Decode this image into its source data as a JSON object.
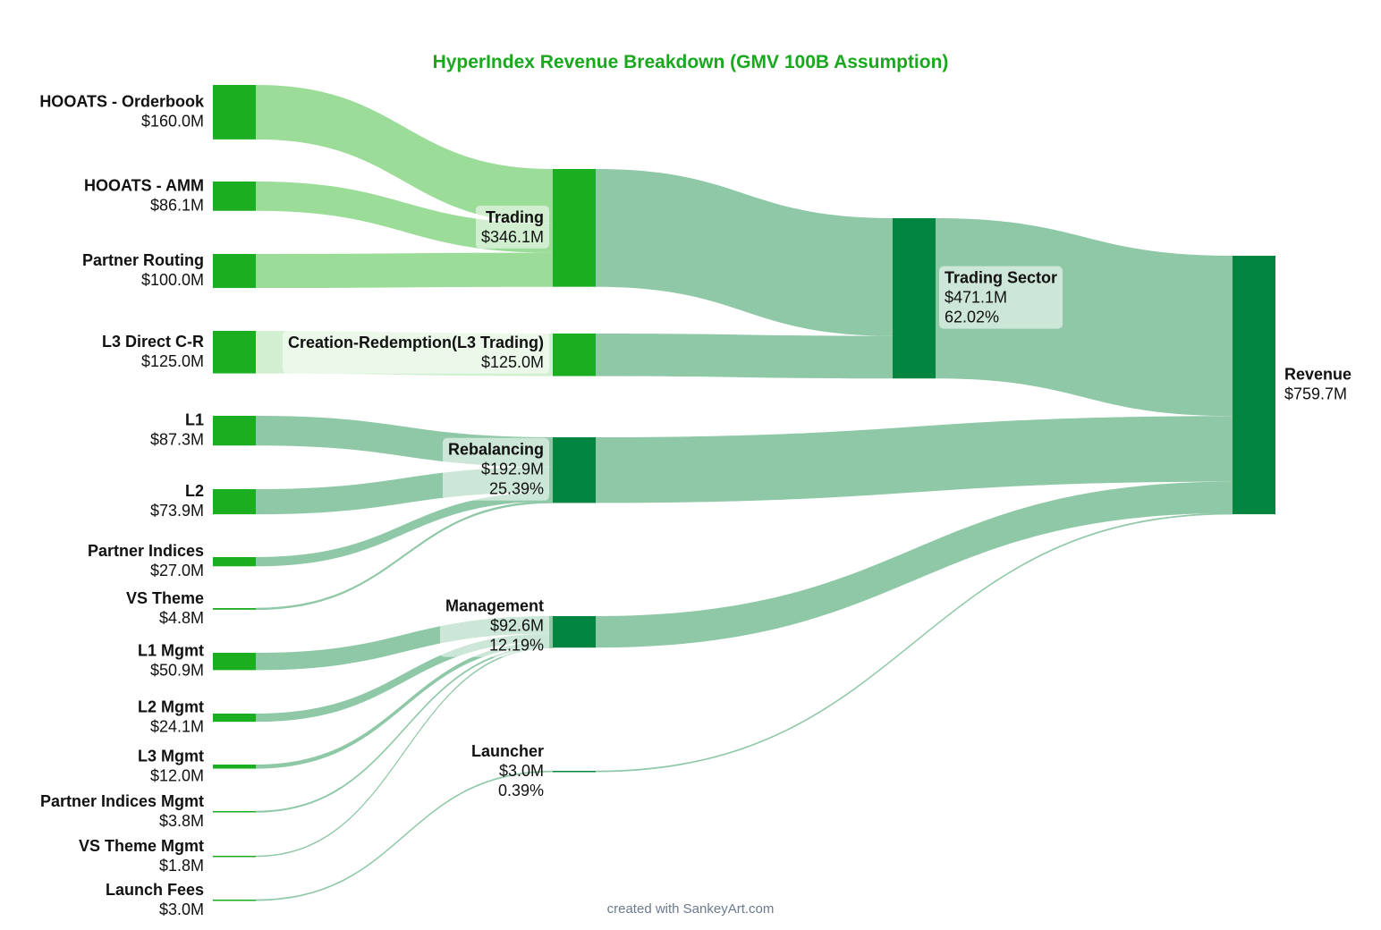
{
  "title": "HyperIndex Revenue Breakdown (GMV 100B Assumption)",
  "credit": "created with SankeyArt.com",
  "colors": {
    "title": "#1aa81e",
    "source_node": "#1aae20",
    "mid_node_light": "#1aae20",
    "mid_node_dark": "#028540",
    "link_source_trading": "#9adc98",
    "link_source_cr": "#d2efd1",
    "link_green": "#8fc8a7",
    "label_bg": "#ffffff"
  },
  "nodes": [
    {
      "id": "orderbook",
      "name": "HOOATS - Orderbook",
      "value_label": "$160.0M",
      "color": "source_node"
    },
    {
      "id": "amm",
      "name": "HOOATS - AMM",
      "value_label": "$86.1M",
      "color": "source_node"
    },
    {
      "id": "partner_routing",
      "name": "Partner Routing",
      "value_label": "$100.0M",
      "color": "source_node"
    },
    {
      "id": "l3_direct",
      "name": "L3 Direct C-R",
      "value_label": "$125.0M",
      "color": "source_node"
    },
    {
      "id": "l1",
      "name": "L1",
      "value_label": "$87.3M",
      "color": "source_node"
    },
    {
      "id": "l2",
      "name": "L2",
      "value_label": "$73.9M",
      "color": "source_node"
    },
    {
      "id": "partner_indices",
      "name": "Partner Indices",
      "value_label": "$27.0M",
      "color": "source_node"
    },
    {
      "id": "vs_theme",
      "name": "VS Theme",
      "value_label": "$4.8M",
      "color": "source_node"
    },
    {
      "id": "l1_mgmt",
      "name": "L1 Mgmt",
      "value_label": "$50.9M",
      "color": "source_node"
    },
    {
      "id": "l2_mgmt",
      "name": "L2 Mgmt",
      "value_label": "$24.1M",
      "color": "source_node"
    },
    {
      "id": "l3_mgmt",
      "name": "L3 Mgmt",
      "value_label": "$12.0M",
      "color": "source_node"
    },
    {
      "id": "partner_indices_mgmt",
      "name": "Partner Indices Mgmt",
      "value_label": "$3.8M",
      "color": "source_node"
    },
    {
      "id": "vs_theme_mgmt",
      "name": "VS Theme Mgmt",
      "value_label": "$1.8M",
      "color": "source_node"
    },
    {
      "id": "launch_fees",
      "name": "Launch Fees",
      "value_label": "$3.0M",
      "color": "source_node"
    },
    {
      "id": "trading",
      "name": "Trading",
      "value_label": "$346.1M",
      "color": "mid_node_light"
    },
    {
      "id": "creation_redemption",
      "name": "Creation-Redemption(L3 Trading)",
      "value_label": "$125.0M",
      "color": "mid_node_light"
    },
    {
      "id": "rebalancing",
      "name": "Rebalancing",
      "value_label": "$192.9M",
      "pct_label": "25.39%",
      "color": "mid_node_dark"
    },
    {
      "id": "management",
      "name": "Management",
      "value_label": "$92.6M",
      "pct_label": "12.19%",
      "color": "mid_node_dark"
    },
    {
      "id": "launcher",
      "name": "Launcher",
      "value_label": "$3.0M",
      "pct_label": "0.39%",
      "color": "mid_node_dark"
    },
    {
      "id": "trading_sector",
      "name": "Trading Sector",
      "value_label": "$471.1M",
      "pct_label": "62.02%",
      "color": "mid_node_dark"
    },
    {
      "id": "revenue",
      "name": "Revenue",
      "value_label": "$759.7M",
      "color": "mid_node_dark"
    }
  ],
  "links": [
    {
      "source": "orderbook",
      "target": "trading",
      "value": 160.0,
      "color": "link_source_trading"
    },
    {
      "source": "amm",
      "target": "trading",
      "value": 86.1,
      "color": "link_source_trading"
    },
    {
      "source": "partner_routing",
      "target": "trading",
      "value": 100.0,
      "color": "link_source_trading"
    },
    {
      "source": "l3_direct",
      "target": "creation_redemption",
      "value": 125.0,
      "color": "link_source_cr"
    },
    {
      "source": "l1",
      "target": "rebalancing",
      "value": 87.3,
      "color": "link_green"
    },
    {
      "source": "l2",
      "target": "rebalancing",
      "value": 73.9,
      "color": "link_green"
    },
    {
      "source": "partner_indices",
      "target": "rebalancing",
      "value": 27.0,
      "color": "link_green"
    },
    {
      "source": "vs_theme",
      "target": "rebalancing",
      "value": 4.8,
      "color": "link_green"
    },
    {
      "source": "l1_mgmt",
      "target": "management",
      "value": 50.9,
      "color": "link_green"
    },
    {
      "source": "l2_mgmt",
      "target": "management",
      "value": 24.1,
      "color": "link_green"
    },
    {
      "source": "l3_mgmt",
      "target": "management",
      "value": 12.0,
      "color": "link_green"
    },
    {
      "source": "partner_indices_mgmt",
      "target": "management",
      "value": 3.8,
      "color": "link_green"
    },
    {
      "source": "vs_theme_mgmt",
      "target": "management",
      "value": 1.8,
      "color": "link_green"
    },
    {
      "source": "launch_fees",
      "target": "launcher",
      "value": 3.0,
      "color": "link_green"
    },
    {
      "source": "trading",
      "target": "trading_sector",
      "value": 346.1,
      "color": "link_green"
    },
    {
      "source": "creation_redemption",
      "target": "trading_sector",
      "value": 125.0,
      "color": "link_green"
    },
    {
      "source": "trading_sector",
      "target": "revenue",
      "value": 471.1,
      "color": "link_green"
    },
    {
      "source": "rebalancing",
      "target": "revenue",
      "value": 192.9,
      "color": "link_green"
    },
    {
      "source": "management",
      "target": "revenue",
      "value": 92.6,
      "color": "link_green"
    },
    {
      "source": "launcher",
      "target": "revenue",
      "value": 3.0,
      "color": "link_green"
    }
  ]
}
